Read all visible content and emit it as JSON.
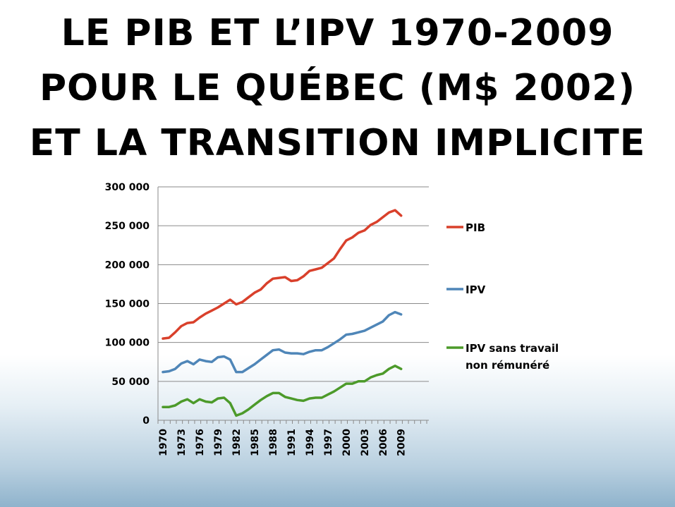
{
  "slide": {
    "title_lines": [
      "LE PIB ET L’IPV 1970-2009",
      "POUR LE QUÉBEC (M$ 2002)",
      "ET LA TRANSITION IMPLICITE"
    ]
  },
  "chart_data": {
    "type": "line",
    "title": "",
    "xlabel": "",
    "ylabel": "",
    "ylim": [
      0,
      300000
    ],
    "yticks": [
      0,
      50000,
      100000,
      150000,
      200000,
      250000,
      300000
    ],
    "ytick_labels": [
      "0",
      "50 000",
      "100 000",
      "150 000",
      "200 000",
      "250 000",
      "300 000"
    ],
    "x": [
      1970,
      1971,
      1972,
      1973,
      1974,
      1975,
      1976,
      1977,
      1978,
      1979,
      1980,
      1981,
      1982,
      1983,
      1984,
      1985,
      1986,
      1987,
      1988,
      1989,
      1990,
      1991,
      1992,
      1993,
      1994,
      1995,
      1996,
      1997,
      1998,
      1999,
      2000,
      2001,
      2002,
      2003,
      2004,
      2005,
      2006,
      2007,
      2008,
      2009
    ],
    "x_tick_labels": [
      "1970",
      "1973",
      "1976",
      "1979",
      "1982",
      "1985",
      "1988",
      "1991",
      "1994",
      "1997",
      "2000",
      "2003",
      "2006",
      "2009"
    ],
    "grid": "horizontal",
    "legend_position": "right",
    "series": [
      {
        "name": "PIB",
        "color": "#d9402b",
        "values": [
          105000,
          106000,
          113000,
          121000,
          125000,
          126000,
          132000,
          137000,
          141000,
          145000,
          150000,
          155000,
          149000,
          152000,
          158000,
          164000,
          168000,
          176000,
          182000,
          183000,
          184000,
          179000,
          180000,
          185000,
          192000,
          194000,
          196000,
          202000,
          208000,
          220000,
          231000,
          235000,
          241000,
          244000,
          251000,
          255000,
          261000,
          267000,
          270000,
          263000
        ]
      },
      {
        "name": "IPV",
        "color": "#4f86b8",
        "values": [
          62000,
          63000,
          66000,
          73000,
          76000,
          72000,
          78000,
          76000,
          75000,
          81000,
          82000,
          78000,
          62000,
          62000,
          67000,
          72000,
          78000,
          84000,
          90000,
          91000,
          87000,
          86000,
          86000,
          85000,
          88000,
          90000,
          90000,
          94000,
          99000,
          104000,
          110000,
          111000,
          113000,
          115000,
          119000,
          123000,
          127000,
          135000,
          139000,
          136000
        ]
      },
      {
        "name": "IPV sans travail non rémunéré",
        "color": "#4c9a2a",
        "values": [
          17000,
          17000,
          19000,
          24000,
          27000,
          22000,
          27000,
          24000,
          23000,
          28000,
          29000,
          22000,
          6000,
          9000,
          14000,
          20000,
          26000,
          31000,
          35000,
          35000,
          30000,
          28000,
          26000,
          25000,
          28000,
          29000,
          29000,
          33000,
          37000,
          42000,
          47000,
          47000,
          50000,
          50000,
          55000,
          58000,
          60000,
          66000,
          70000,
          66000
        ]
      }
    ]
  }
}
